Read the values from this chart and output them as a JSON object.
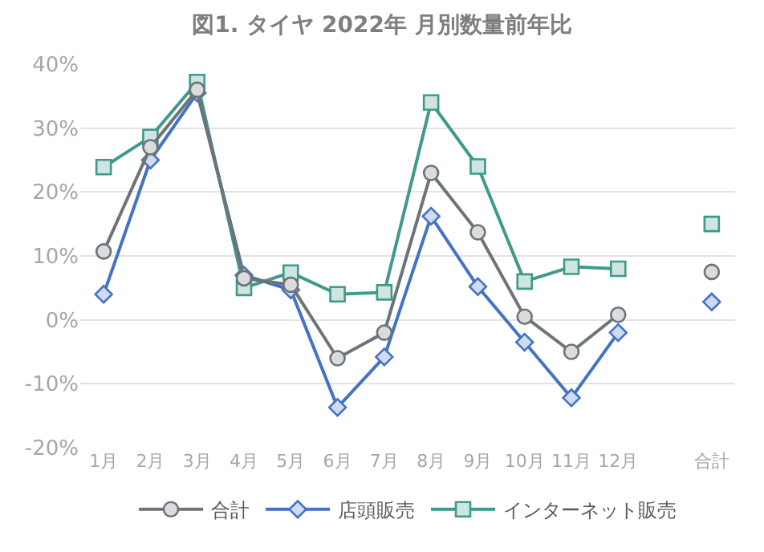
{
  "chart_data": {
    "type": "line",
    "title": "図1. タイヤ 2022年 月別数量前年比",
    "categories": [
      "1月",
      "2月",
      "3月",
      "4月",
      "5月",
      "6月",
      "7月",
      "8月",
      "9月",
      "10月",
      "11月",
      "12月",
      null,
      "合計"
    ],
    "series": [
      {
        "name": "合計",
        "color": "#6d7478",
        "marker": "circle",
        "values": [
          10.7,
          27,
          36,
          6.5,
          5.5,
          -6,
          -2,
          23,
          13.7,
          0.5,
          -5,
          0.8,
          null,
          7.5
        ]
      },
      {
        "name": "店頭販売",
        "color": "#4472c4",
        "marker": "diamond",
        "values": [
          4,
          25,
          35.5,
          7,
          4.7,
          -13.7,
          -5.8,
          16.2,
          5.2,
          -3.5,
          -12.2,
          -2,
          null,
          2.8
        ]
      },
      {
        "name": "インターネット販売",
        "color": "#3e9a8a",
        "marker": "square",
        "values": [
          23.9,
          28.6,
          37.2,
          5,
          7.4,
          4,
          4.3,
          34,
          24,
          6,
          8.3,
          8,
          null,
          15
        ]
      }
    ],
    "ylim": [
      -20,
      40
    ],
    "yticks": [
      {
        "value": -20,
        "label": "-20%"
      },
      {
        "value": -10,
        "label": "-10%"
      },
      {
        "value": 0,
        "label": "0%"
      },
      {
        "value": 10,
        "label": "10%"
      },
      {
        "value": 20,
        "label": "20%"
      },
      {
        "value": 30,
        "label": "30%"
      },
      {
        "value": 40,
        "label": "40%"
      }
    ],
    "grid": "y",
    "legend": "bottom",
    "line_style": "solid"
  }
}
